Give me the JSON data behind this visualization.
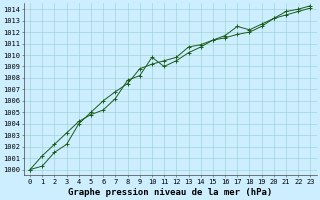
{
  "title": "Graphe pression niveau de la mer (hPa)",
  "bg_color": "#cceeff",
  "grid_color": "#99cccc",
  "line_color": "#1a5c1a",
  "series1": [
    1000.0,
    1000.3,
    1001.5,
    1002.2,
    1004.0,
    1005.0,
    1006.0,
    1006.8,
    1007.5,
    1008.8,
    1009.2,
    1009.5,
    1009.8,
    1010.7,
    1010.9,
    1011.3,
    1011.5,
    1011.8,
    1012.0,
    1012.5,
    1013.2,
    1013.8,
    1014.0,
    1014.3
  ],
  "series2": [
    1000.0,
    1001.2,
    1002.2,
    1003.2,
    1004.2,
    1004.8,
    1005.2,
    1006.2,
    1007.8,
    1008.2,
    1009.8,
    1009.0,
    1009.5,
    1010.2,
    1010.7,
    1011.3,
    1011.7,
    1012.5,
    1012.2,
    1012.7,
    1013.2,
    1013.5,
    1013.8,
    1014.1
  ],
  "x_labels": [
    "0",
    "1",
    "2",
    "3",
    "4",
    "5",
    "6",
    "7",
    "8",
    "9",
    "10",
    "11",
    "12",
    "13",
    "14",
    "15",
    "16",
    "17",
    "18",
    "19",
    "20",
    "21",
    "22",
    "23"
  ],
  "ylim": [
    999.5,
    1014.5
  ],
  "yticks": [
    1000,
    1001,
    1002,
    1003,
    1004,
    1005,
    1006,
    1007,
    1008,
    1009,
    1010,
    1011,
    1012,
    1013,
    1014
  ],
  "title_fontsize": 6.5,
  "tick_fontsize": 5.0,
  "figsize": [
    3.2,
    2.0
  ],
  "dpi": 100
}
